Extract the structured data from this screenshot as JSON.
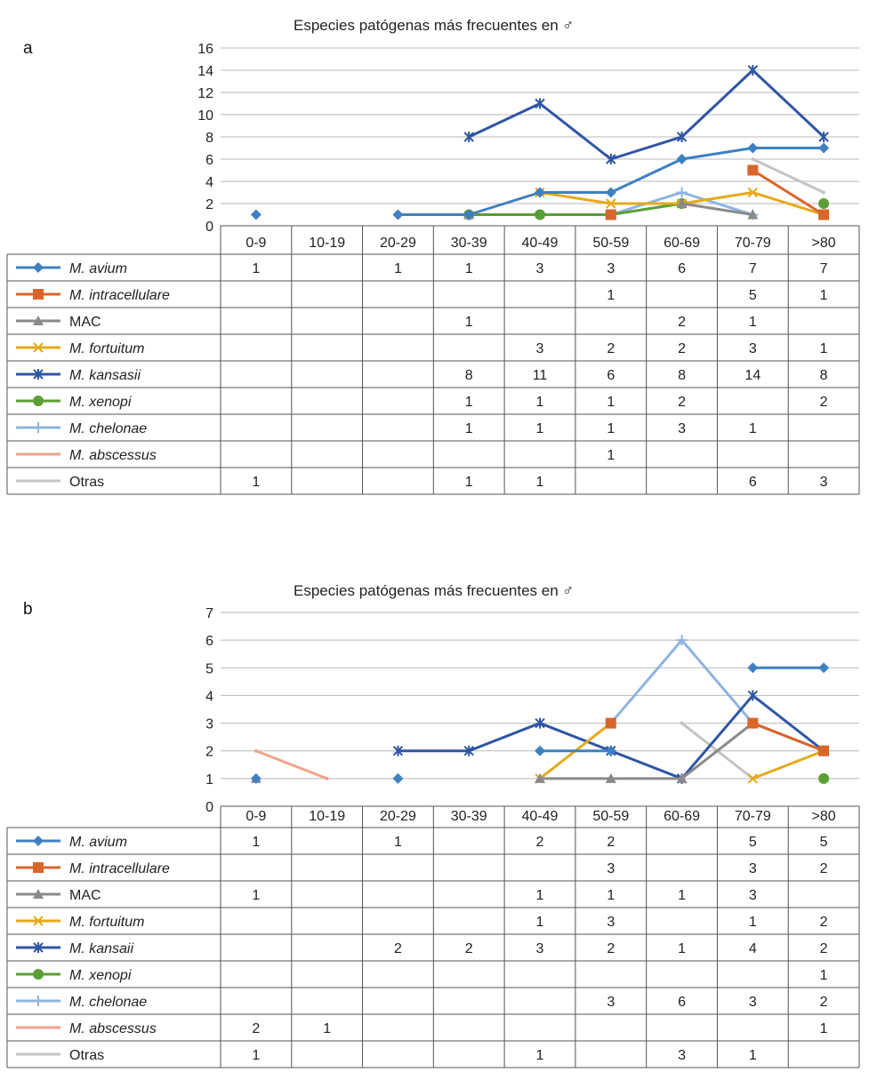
{
  "chart_data": [
    {
      "type": "line",
      "panel_label": "a",
      "title": "Especies patógenas más frecuentes en ♂",
      "categories": [
        "0-9",
        "10-19",
        "20-29",
        "30-39",
        "40-49",
        "50-59",
        "60-69",
        "70-79",
        ">80"
      ],
      "ylim": [
        0,
        16
      ],
      "yticks": [
        0,
        2,
        4,
        6,
        8,
        10,
        12,
        14,
        16
      ],
      "grid": true,
      "legend": "table-left",
      "series": [
        {
          "name": "M. avium",
          "italic": true,
          "color": "#3f80c2",
          "marker": "diamond",
          "values": [
            1,
            null,
            1,
            1,
            3,
            3,
            6,
            7,
            7
          ]
        },
        {
          "name": "M. intracellulare",
          "italic": true,
          "color": "#d9652a",
          "marker": "square",
          "values": [
            null,
            null,
            null,
            null,
            null,
            1,
            null,
            5,
            1
          ]
        },
        {
          "name": "MAC",
          "italic": false,
          "color": "#8a8a8a",
          "marker": "triangle",
          "values": [
            null,
            null,
            null,
            1,
            null,
            null,
            2,
            1,
            null
          ]
        },
        {
          "name": "M. fortuitum",
          "italic": true,
          "color": "#e6a91a",
          "marker": "x",
          "values": [
            null,
            null,
            null,
            null,
            3,
            2,
            2,
            3,
            1
          ]
        },
        {
          "name": "M. kansasii",
          "italic": true,
          "color": "#2f55a4",
          "marker": "star",
          "values": [
            null,
            null,
            null,
            8,
            11,
            6,
            8,
            14,
            8
          ]
        },
        {
          "name": "M. xenopi",
          "italic": true,
          "color": "#5a9e35",
          "marker": "circle",
          "values": [
            null,
            null,
            null,
            1,
            1,
            1,
            2,
            null,
            2
          ]
        },
        {
          "name": "M. chelonae",
          "italic": true,
          "color": "#8fb4de",
          "marker": "plus",
          "values": [
            null,
            null,
            null,
            1,
            1,
            1,
            3,
            1,
            null
          ]
        },
        {
          "name": "M. abscessus",
          "italic": true,
          "color": "#f0a38a",
          "marker": "none",
          "values": [
            null,
            null,
            null,
            null,
            null,
            1,
            null,
            null,
            null
          ]
        },
        {
          "name": "Otras",
          "italic": false,
          "color": "#c4c4c4",
          "marker": "none",
          "values": [
            1,
            null,
            null,
            1,
            1,
            null,
            null,
            6,
            3
          ]
        }
      ]
    },
    {
      "type": "line",
      "panel_label": "b",
      "title": "Especies patógenas más frecuentes en ♂",
      "categories": [
        "0-9",
        "10-19",
        "20-29",
        "30-39",
        "40-49",
        "50-59",
        "60-69",
        "70-79",
        ">80"
      ],
      "ylim": [
        0,
        7
      ],
      "yticks": [
        0,
        1,
        2,
        3,
        4,
        5,
        6,
        7
      ],
      "grid": true,
      "legend": "table-left",
      "series": [
        {
          "name": "M. avium",
          "italic": true,
          "color": "#3f80c2",
          "marker": "diamond",
          "values": [
            1,
            null,
            1,
            null,
            2,
            2,
            null,
            5,
            5
          ]
        },
        {
          "name": "M. intracellulare",
          "italic": true,
          "color": "#d9652a",
          "marker": "square",
          "values": [
            null,
            null,
            null,
            null,
            null,
            3,
            null,
            3,
            2
          ]
        },
        {
          "name": "MAC",
          "italic": false,
          "color": "#8a8a8a",
          "marker": "triangle",
          "values": [
            1,
            null,
            null,
            null,
            1,
            1,
            1,
            3,
            null
          ]
        },
        {
          "name": "M. fortuitum",
          "italic": true,
          "color": "#e6a91a",
          "marker": "x",
          "values": [
            null,
            null,
            null,
            null,
            1,
            3,
            null,
            1,
            2
          ]
        },
        {
          "name": "M. kansaii",
          "italic": true,
          "color": "#2f55a4",
          "marker": "star",
          "values": [
            null,
            null,
            2,
            2,
            3,
            2,
            1,
            4,
            2
          ]
        },
        {
          "name": "M. xenopi",
          "italic": true,
          "color": "#5a9e35",
          "marker": "circle",
          "values": [
            null,
            null,
            null,
            null,
            null,
            null,
            null,
            null,
            1
          ]
        },
        {
          "name": "M. chelonae",
          "italic": true,
          "color": "#8fb4de",
          "marker": "plus",
          "values": [
            null,
            null,
            null,
            null,
            null,
            3,
            6,
            3,
            2
          ]
        },
        {
          "name": "M. abscessus",
          "italic": true,
          "color": "#f0a38a",
          "marker": "none",
          "values": [
            2,
            1,
            null,
            null,
            null,
            null,
            null,
            null,
            1
          ]
        },
        {
          "name": "Otras",
          "italic": false,
          "color": "#c4c4c4",
          "marker": "none",
          "values": [
            1,
            null,
            null,
            null,
            1,
            null,
            3,
            1,
            null
          ]
        }
      ]
    }
  ]
}
